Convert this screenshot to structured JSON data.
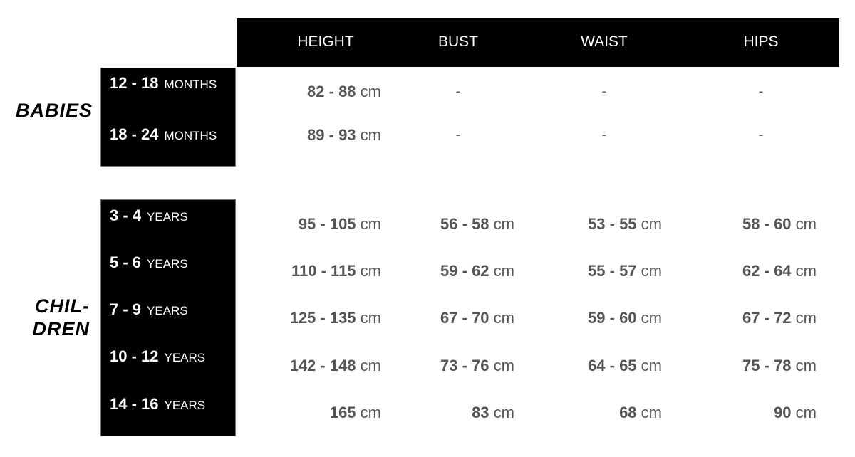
{
  "headers": [
    "HEIGHT",
    "BUST",
    "WAIST",
    "HIPS"
  ],
  "groups": [
    {
      "label": "BABIES",
      "rows": [
        {
          "age": "12 - 18",
          "unit": "MONTHS",
          "values": [
            {
              "num": "82 - 88",
              "unit": "cm"
            },
            {
              "num": "-",
              "unit": ""
            },
            {
              "num": "-",
              "unit": ""
            },
            {
              "num": "-",
              "unit": ""
            }
          ]
        },
        {
          "age": "18 - 24",
          "unit": "MONTHS",
          "values": [
            {
              "num": "89 - 93",
              "unit": "cm"
            },
            {
              "num": "-",
              "unit": ""
            },
            {
              "num": "-",
              "unit": ""
            },
            {
              "num": "-",
              "unit": ""
            }
          ]
        }
      ]
    },
    {
      "label_line1": "CHIL-",
      "label_line2": "DREN",
      "rows": [
        {
          "age": "3 - 4",
          "unit": "YEARS",
          "values": [
            {
              "num": "95 - 105",
              "unit": "cm"
            },
            {
              "num": "56 - 58",
              "unit": "cm"
            },
            {
              "num": "53 - 55",
              "unit": "cm"
            },
            {
              "num": "58 - 60",
              "unit": "cm"
            }
          ]
        },
        {
          "age": "5 - 6",
          "unit": "YEARS",
          "values": [
            {
              "num": "110 - 115",
              "unit": "cm"
            },
            {
              "num": "59 - 62",
              "unit": "cm"
            },
            {
              "num": "55 - 57",
              "unit": "cm"
            },
            {
              "num": "62 - 64",
              "unit": "cm"
            }
          ]
        },
        {
          "age": "7 - 9",
          "unit": "YEARS",
          "values": [
            {
              "num": "125 - 135",
              "unit": "cm"
            },
            {
              "num": "67 - 70",
              "unit": "cm"
            },
            {
              "num": "59 - 60",
              "unit": "cm"
            },
            {
              "num": "67 - 72",
              "unit": "cm"
            }
          ]
        },
        {
          "age": "10 - 12",
          "unit": "YEARS",
          "values": [
            {
              "num": "142 - 148",
              "unit": "cm"
            },
            {
              "num": "73 - 76",
              "unit": "cm"
            },
            {
              "num": "64 - 65",
              "unit": "cm"
            },
            {
              "num": "75 - 78",
              "unit": "cm"
            }
          ]
        },
        {
          "age": "14 - 16",
          "unit": "YEARS",
          "values": [
            {
              "num": "165",
              "unit": "cm"
            },
            {
              "num": "83",
              "unit": "cm"
            },
            {
              "num": "68",
              "unit": "cm"
            },
            {
              "num": "90",
              "unit": "cm"
            }
          ]
        }
      ]
    }
  ]
}
